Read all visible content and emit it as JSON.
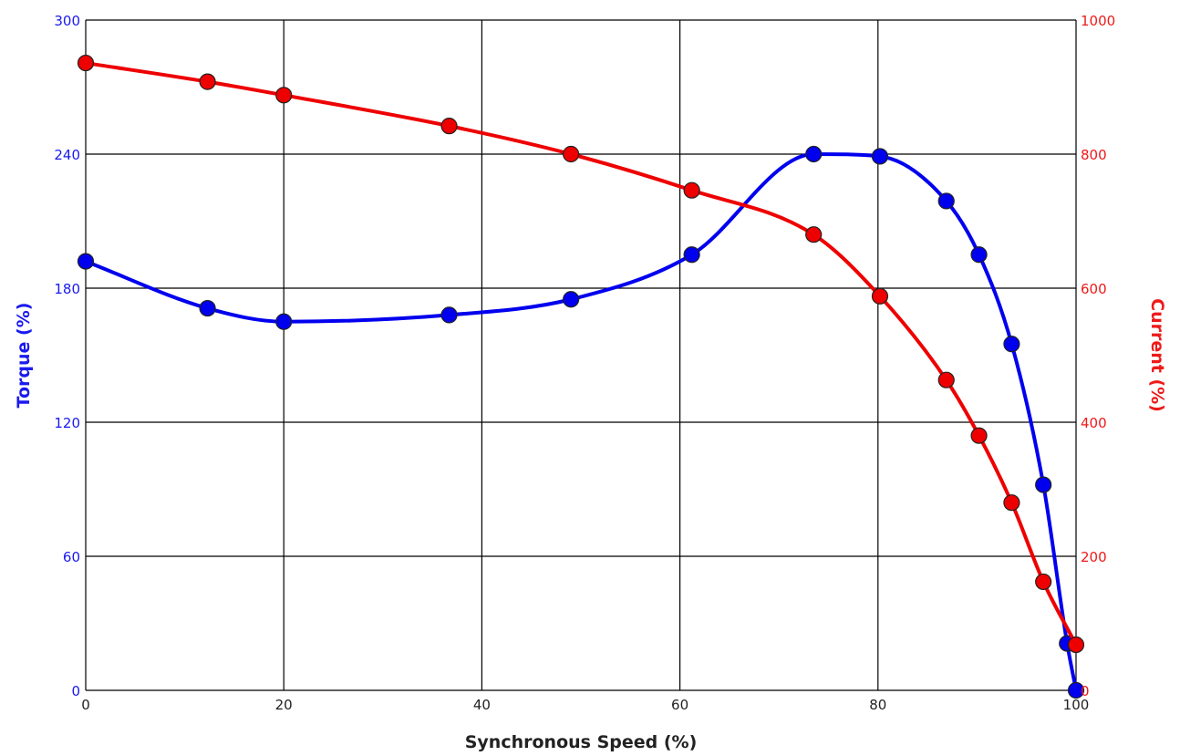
{
  "chart_data": {
    "type": "line",
    "title": "",
    "xlabel": "Synchronous Speed (%)",
    "xlim": [
      0,
      100
    ],
    "x_ticks": [
      0,
      20,
      40,
      60,
      80,
      100
    ],
    "grid": true,
    "legend": "none",
    "y_left": {
      "label": "Torque (%)",
      "lim": [
        0,
        300
      ],
      "ticks": [
        0,
        60,
        120,
        180,
        240,
        300
      ],
      "color": "#1a1aee"
    },
    "y_right": {
      "label": "Current (%)",
      "lim": [
        0,
        1000
      ],
      "ticks": [
        0,
        200,
        400,
        600,
        800,
        1000
      ],
      "color": "#ee1a1a"
    },
    "series": [
      {
        "axis": "left",
        "color": "#0000ee",
        "x": [
          0,
          12.3,
          20,
          36.7,
          49,
          61.2,
          73.5,
          80.2,
          86.9,
          90.2,
          93.5,
          96.7,
          99.1,
          100
        ],
        "y": [
          192,
          171,
          165,
          168,
          175,
          195,
          240,
          239,
          219,
          195,
          155,
          92,
          21,
          0
        ]
      },
      {
        "axis": "right",
        "color": "#ee0000",
        "x": [
          0,
          12.3,
          20,
          36.7,
          49,
          61.2,
          73.5,
          80.2,
          86.9,
          90.2,
          93.5,
          96.7,
          100
        ],
        "y": [
          936,
          908,
          888,
          842,
          800,
          746,
          680,
          588,
          463,
          380,
          280,
          162,
          68
        ]
      }
    ]
  }
}
